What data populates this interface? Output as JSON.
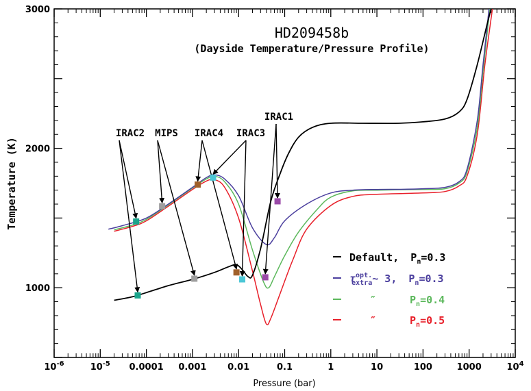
{
  "chart_data": {
    "type": "line",
    "title": "HD209458b",
    "subtitle": "(Dayside Temperature/Pressure Profile)",
    "xlabel": "Pressure (bar)",
    "ylabel": "Temperature (K)",
    "x_scale": "log",
    "xlim": [
      1e-06,
      10000
    ],
    "ylim": [
      500,
      3000
    ],
    "x_ticks": [
      {
        "v": 1e-06,
        "label": "10^-6"
      },
      {
        "v": 1e-05,
        "label": "10^-5"
      },
      {
        "v": 0.0001,
        "label": "0.0001"
      },
      {
        "v": 0.001,
        "label": "0.001"
      },
      {
        "v": 0.01,
        "label": "0.01"
      },
      {
        "v": 0.1,
        "label": "0.1"
      },
      {
        "v": 1,
        "label": "1"
      },
      {
        "v": 10,
        "label": "10"
      },
      {
        "v": 100,
        "label": "100"
      },
      {
        "v": 1000,
        "label": "1000"
      },
      {
        "v": 10000,
        "label": "10^4"
      }
    ],
    "y_ticks": [
      {
        "v": 1000,
        "label": "1000"
      },
      {
        "v": 2000,
        "label": "2000"
      },
      {
        "v": 3000,
        "label": "3000"
      }
    ],
    "series": [
      {
        "label": "Default,",
        "legend_param": "n",
        "legend_value": "=0.3",
        "color": "#000000",
        "points": [
          [
            2e-05,
            910
          ],
          [
            5e-05,
            935
          ],
          [
            0.0001,
            965
          ],
          [
            0.0003,
            1015
          ],
          [
            0.001,
            1060
          ],
          [
            0.003,
            1110
          ],
          [
            0.006,
            1150
          ],
          [
            0.009,
            1165
          ],
          [
            0.012,
            1130
          ],
          [
            0.016,
            1080
          ],
          [
            0.02,
            1090
          ],
          [
            0.03,
            1280
          ],
          [
            0.05,
            1620
          ],
          [
            0.08,
            1820
          ],
          [
            0.12,
            1960
          ],
          [
            0.2,
            2080
          ],
          [
            0.4,
            2150
          ],
          [
            1,
            2180
          ],
          [
            5,
            2180
          ],
          [
            30,
            2180
          ],
          [
            100,
            2190
          ],
          [
            300,
            2210
          ],
          [
            600,
            2260
          ],
          [
            900,
            2350
          ],
          [
            1500,
            2600
          ],
          [
            2500,
            2900
          ],
          [
            3000,
            3000
          ]
        ]
      },
      {
        "label": "~ 3,",
        "legend_tau": "τ",
        "legend_tau_sup": "opt.",
        "legend_tau_sub": "extra",
        "legend_param": "n",
        "legend_value": "=0.3",
        "color": "#4b3f9e",
        "points": [
          [
            1.5e-05,
            1420
          ],
          [
            3e-05,
            1445
          ],
          [
            0.0001,
            1500
          ],
          [
            0.0003,
            1600
          ],
          [
            0.001,
            1720
          ],
          [
            0.002,
            1790
          ],
          [
            0.003,
            1810
          ],
          [
            0.005,
            1780
          ],
          [
            0.01,
            1660
          ],
          [
            0.02,
            1430
          ],
          [
            0.04,
            1310
          ],
          [
            0.06,
            1360
          ],
          [
            0.1,
            1480
          ],
          [
            0.3,
            1600
          ],
          [
            1,
            1680
          ],
          [
            3,
            1700
          ],
          [
            10,
            1705
          ],
          [
            30,
            1706
          ],
          [
            100,
            1710
          ],
          [
            300,
            1720
          ],
          [
            600,
            1760
          ],
          [
            900,
            1850
          ],
          [
            1500,
            2200
          ],
          [
            2000,
            2600
          ],
          [
            2700,
            3000
          ]
        ]
      },
      {
        "label": "″",
        "legend_param": "n",
        "legend_value": "=0.4",
        "color": "#5cb85c",
        "points": [
          [
            2e-05,
            1415
          ],
          [
            5e-05,
            1450
          ],
          [
            0.0001,
            1490
          ],
          [
            0.0003,
            1595
          ],
          [
            0.001,
            1715
          ],
          [
            0.002,
            1780
          ],
          [
            0.003,
            1800
          ],
          [
            0.005,
            1760
          ],
          [
            0.01,
            1600
          ],
          [
            0.02,
            1270
          ],
          [
            0.035,
            1040
          ],
          [
            0.045,
            1000
          ],
          [
            0.06,
            1080
          ],
          [
            0.1,
            1230
          ],
          [
            0.2,
            1400
          ],
          [
            0.5,
            1560
          ],
          [
            1,
            1650
          ],
          [
            3,
            1695
          ],
          [
            10,
            1700
          ],
          [
            100,
            1705
          ],
          [
            300,
            1710
          ],
          [
            600,
            1750
          ],
          [
            900,
            1830
          ],
          [
            1500,
            2150
          ],
          [
            2000,
            2550
          ],
          [
            2800,
            3000
          ]
        ]
      },
      {
        "label": "″",
        "legend_param": "n",
        "legend_value": "=0.5",
        "color": "#e8202a",
        "points": [
          [
            2e-05,
            1405
          ],
          [
            5e-05,
            1440
          ],
          [
            0.0001,
            1480
          ],
          [
            0.0003,
            1585
          ],
          [
            0.001,
            1705
          ],
          [
            0.002,
            1765
          ],
          [
            0.003,
            1775
          ],
          [
            0.005,
            1720
          ],
          [
            0.01,
            1500
          ],
          [
            0.02,
            1120
          ],
          [
            0.03,
            880
          ],
          [
            0.04,
            740
          ],
          [
            0.05,
            780
          ],
          [
            0.08,
            960
          ],
          [
            0.15,
            1200
          ],
          [
            0.3,
            1420
          ],
          [
            1,
            1590
          ],
          [
            3,
            1655
          ],
          [
            10,
            1670
          ],
          [
            100,
            1680
          ],
          [
            300,
            1690
          ],
          [
            600,
            1730
          ],
          [
            900,
            1800
          ],
          [
            1500,
            2100
          ],
          [
            2200,
            2600
          ],
          [
            3200,
            3000
          ]
        ]
      }
    ],
    "markers": [
      {
        "x": 6e-05,
        "y": 1475,
        "color": "#1aa58c"
      },
      {
        "x": 0.00022,
        "y": 1585,
        "color": "#9e9e9e"
      },
      {
        "x": 0.0013,
        "y": 1740,
        "color": "#a0602a"
      },
      {
        "x": 0.0028,
        "y": 1790,
        "color": "#4cc7d6"
      },
      {
        "x": 0.07,
        "y": 1620,
        "color": "#9a4aa8"
      },
      {
        "x": 6.5e-05,
        "y": 945,
        "color": "#1aa58c"
      },
      {
        "x": 0.0011,
        "y": 1065,
        "color": "#9e9e9e"
      },
      {
        "x": 0.009,
        "y": 1110,
        "color": "#a0602a"
      },
      {
        "x": 0.012,
        "y": 1060,
        "color": "#4cc7d6"
      },
      {
        "x": 0.038,
        "y": 1075,
        "color": "#9a4aa8"
      }
    ],
    "annotations": [
      {
        "label": "IRAC2",
        "targets": [
          0,
          5
        ]
      },
      {
        "label": "MIPS",
        "targets": [
          1,
          6
        ]
      },
      {
        "label": "IRAC4",
        "targets": [
          2,
          7
        ]
      },
      {
        "label": "IRAC3",
        "targets": [
          3,
          8
        ]
      },
      {
        "label": "IRAC1",
        "targets": [
          4,
          9
        ]
      }
    ],
    "legend": {
      "position": "lower-right",
      "prefix": "P"
    },
    "grid": false
  }
}
